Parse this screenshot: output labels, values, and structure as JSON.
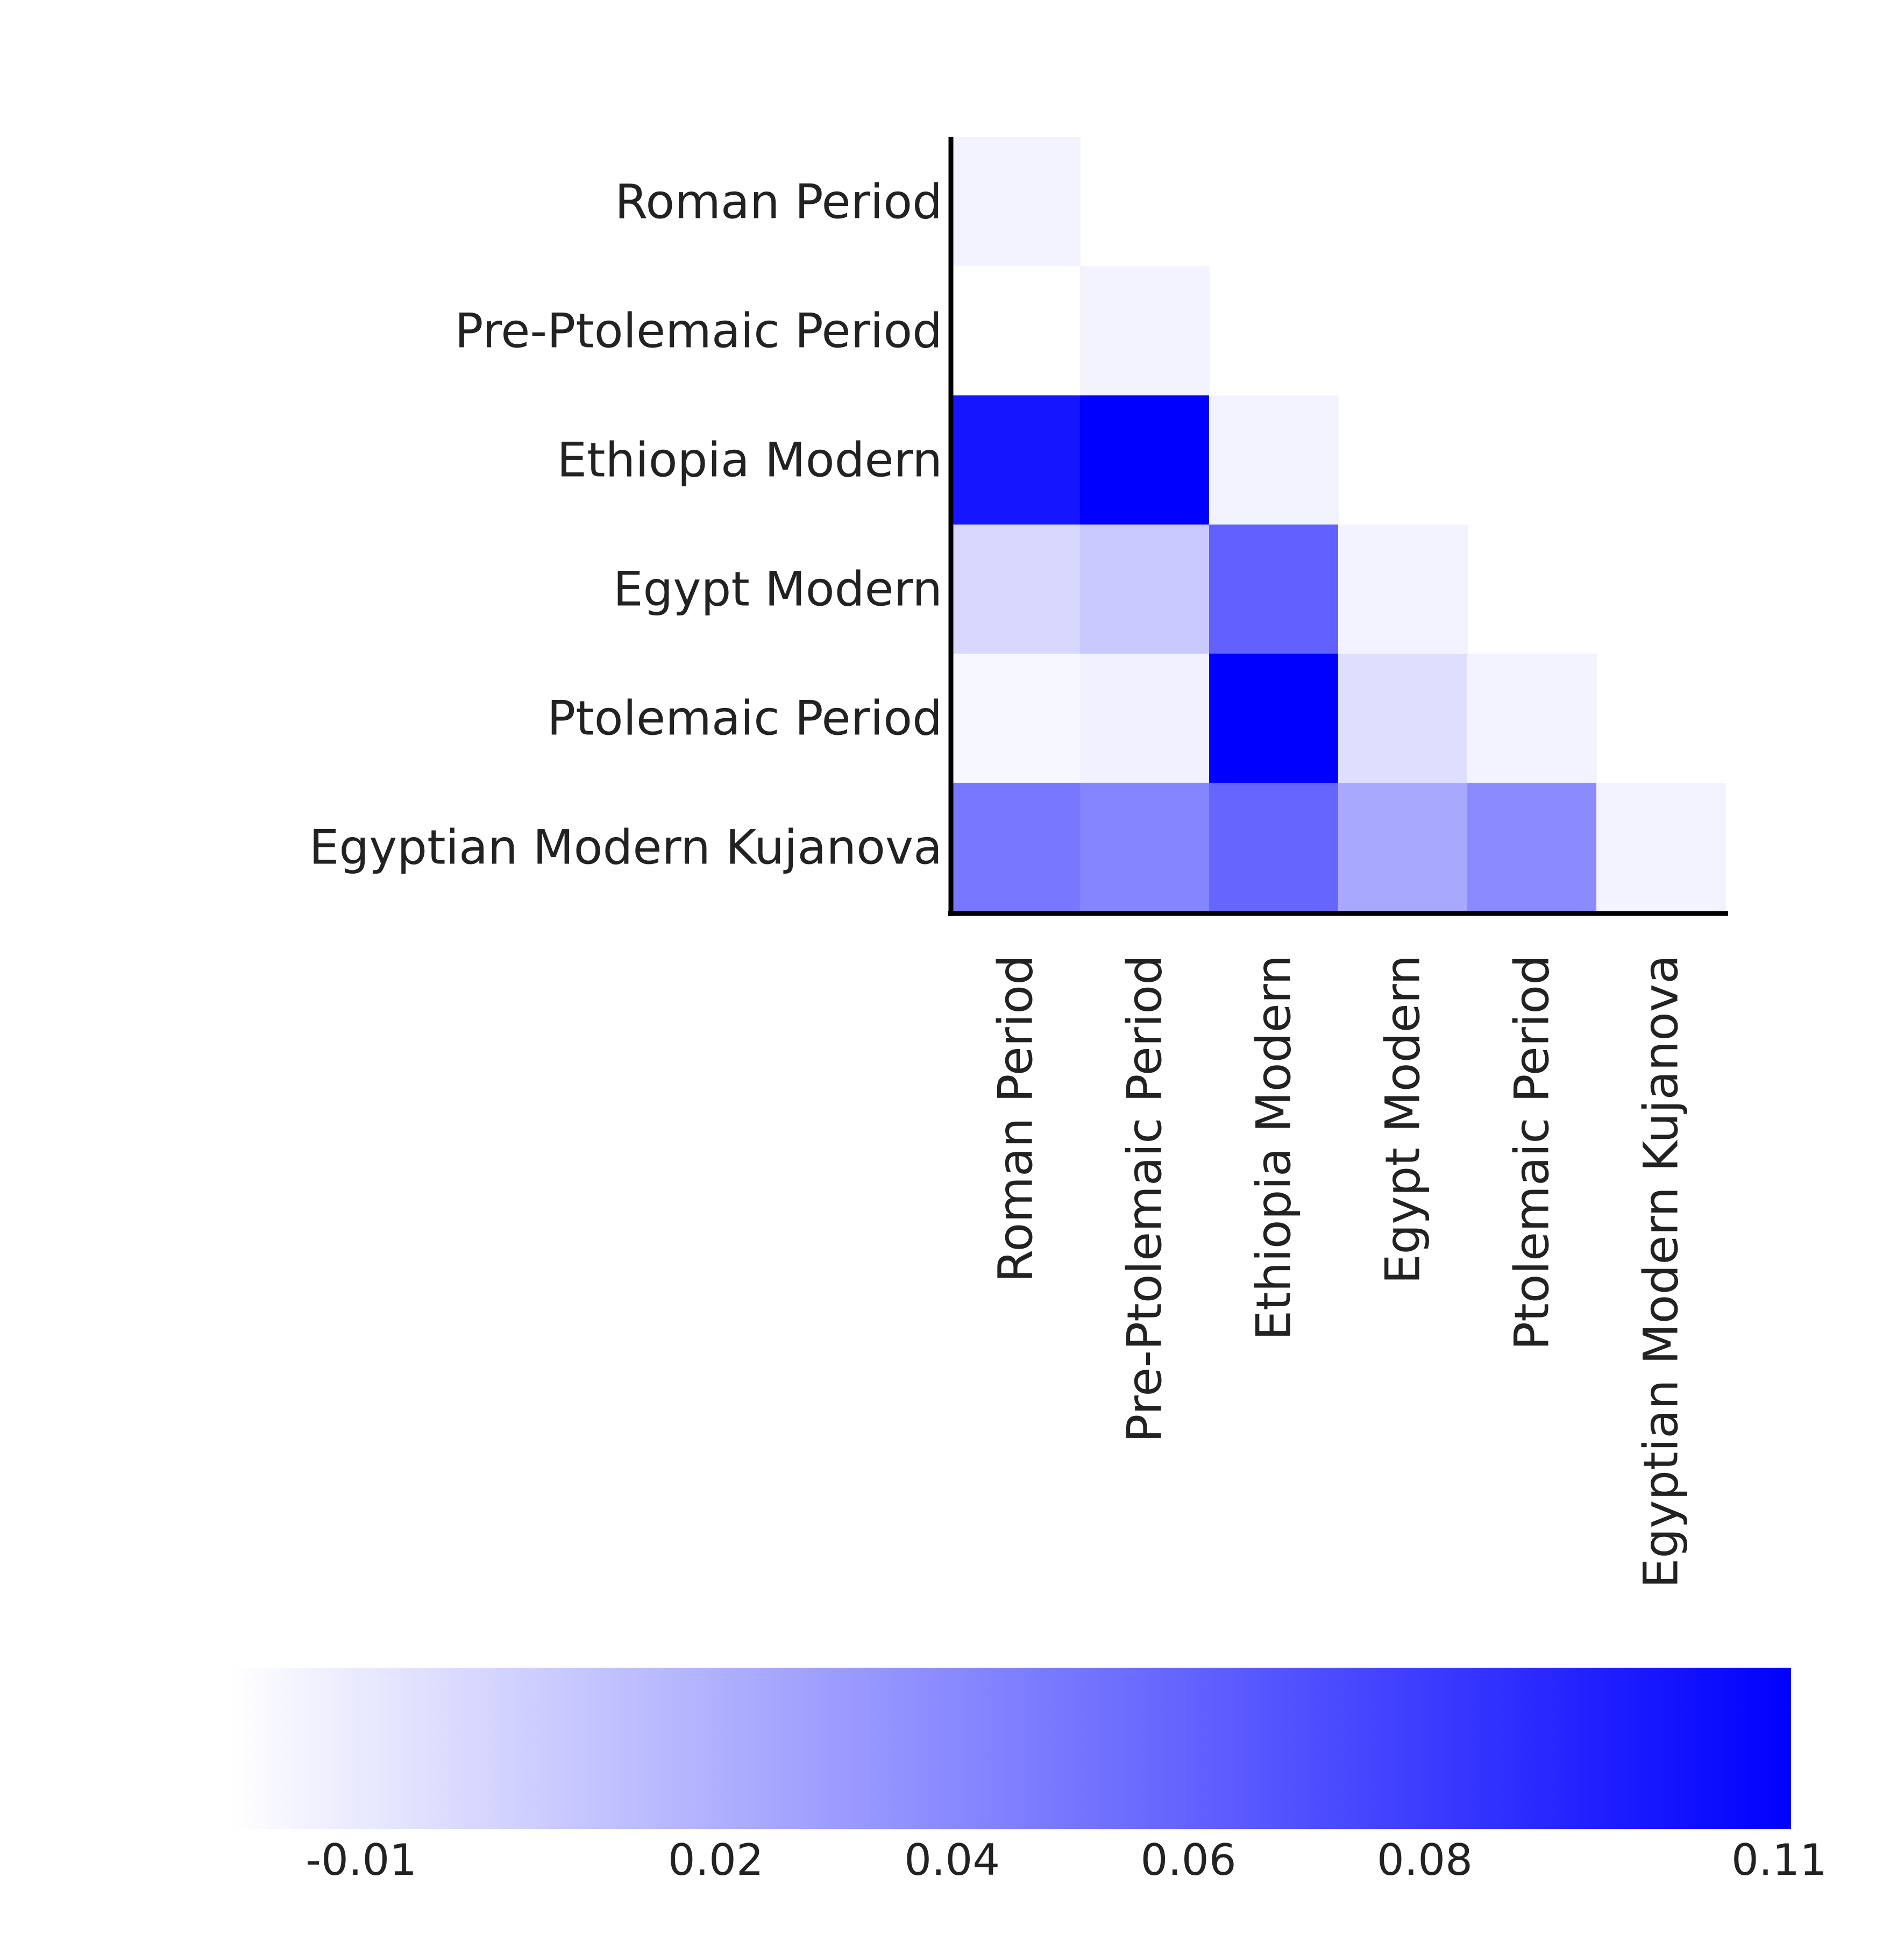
{
  "chart_data": {
    "type": "heatmap",
    "title": "",
    "xlabel": "",
    "ylabel": "",
    "row_labels": [
      "Roman Period",
      "Pre-Ptolemaic Period",
      "Ethiopia Modern",
      "Egypt Modern",
      "Ptolemaic Period",
      "Egyptian Modern Kujanova"
    ],
    "col_labels": [
      "Roman Period",
      "Pre-Ptolemaic Period",
      "Ethiopia Modern",
      "Egypt Modern",
      "Ptolemaic Period",
      "Egyptian Modern Kujanova"
    ],
    "matrix_shape": "lower-triangular",
    "values": [
      [
        -0.015
      ],
      [
        -0.021,
        -0.015
      ],
      [
        0.1,
        0.111,
        -0.015
      ],
      [
        -0.001,
        0.007,
        0.061,
        -0.015
      ],
      [
        -0.017,
        -0.014,
        0.111,
        -0.004,
        -0.015
      ],
      [
        0.049,
        0.042,
        0.058,
        0.024,
        0.039,
        -0.015
      ]
    ],
    "colorscale": {
      "min_color": "#ffffff",
      "max_color": "#0000ff",
      "range": [
        -0.021,
        0.111
      ],
      "tick_values": [
        -0.01,
        0.02,
        0.04,
        0.06,
        0.08,
        0.11
      ],
      "tick_labels": [
        "-0.01",
        "0.02",
        "0.04",
        "0.06",
        "0.08",
        "0.11"
      ]
    },
    "legend_placement": "bottom",
    "grid": false
  },
  "colors": {
    "axis_line": "#000000",
    "text": "#222222",
    "low": "#ffffff",
    "high": "#0000ff"
  }
}
